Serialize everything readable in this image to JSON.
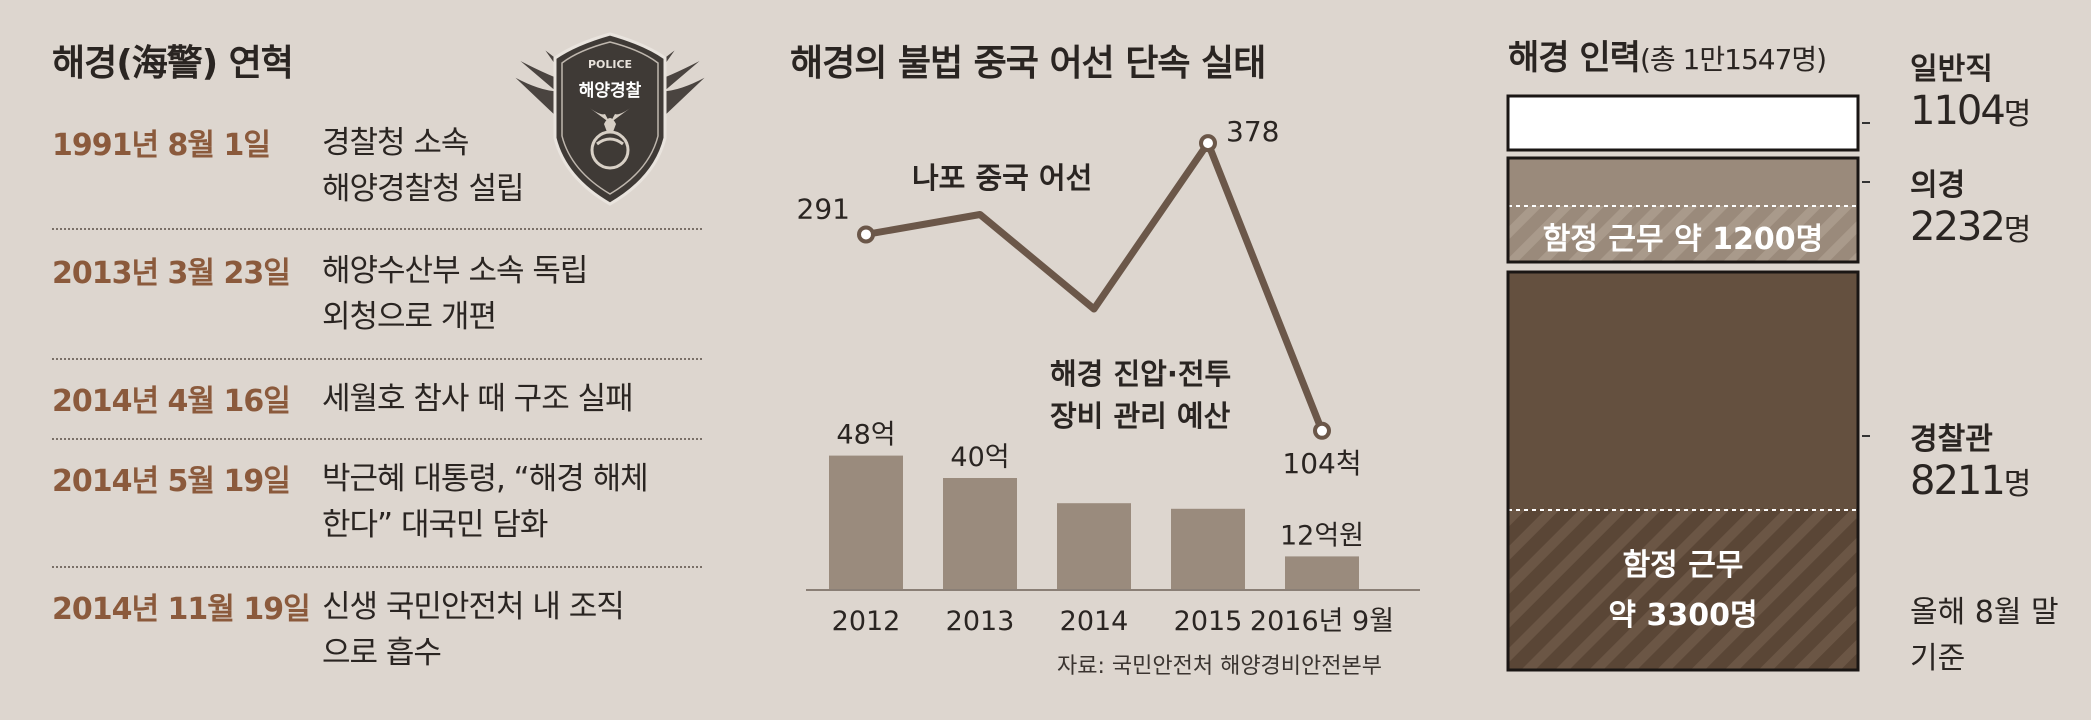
{
  "history": {
    "title": "해경(海警) 연혁",
    "items": [
      {
        "date": "1991년 8월 1일",
        "lines": [
          "경찰청 소속",
          "해양경찰청 설립"
        ]
      },
      {
        "date": "2013년 3월 23일",
        "lines": [
          "해양수산부 소속 독립",
          "외청으로 개편"
        ]
      },
      {
        "date": "2014년 4월 16일",
        "lines": [
          "세월호 참사 때 구조 실패"
        ]
      },
      {
        "date": "2014년 5월 19일",
        "lines": [
          "박근혜 대통령, “해경 해체",
          "한다” 대국민 담화"
        ]
      },
      {
        "date": "2014년 11월 19일",
        "lines": [
          "신생 국민안전처 내 조직",
          "으로 흡수"
        ]
      }
    ],
    "emblem": {
      "top_text": "POLICE",
      "main_text": "해양경찰"
    }
  },
  "chart_data": {
    "title": "해경의 불법 중국 어선 단속 실태",
    "categories": [
      "2012",
      "2013",
      "2014",
      "2015",
      "2016년 9월"
    ],
    "series": [
      {
        "name": "나포 중국 어선",
        "type": "line",
        "values": [
          291,
          310,
          220,
          378,
          104
        ],
        "labels": [
          "291",
          "",
          "",
          "378",
          "104척"
        ]
      },
      {
        "name": "해경 진압·전투 장비 관리 예산",
        "type": "bar",
        "values": [
          48,
          40,
          31,
          29,
          12
        ],
        "labels": [
          "48억",
          "40억",
          "",
          "",
          "12억원"
        ]
      }
    ],
    "source": "자료: 국민안전처 해양경비안전본부"
  },
  "personnel": {
    "title": "해경 인력",
    "subtitle": "(총 1만1547명)",
    "categories": [
      {
        "name": "일반직",
        "value": "1104",
        "unit": "명"
      },
      {
        "name": "의경",
        "value": "2232",
        "unit": "명"
      },
      {
        "name": "경찰관",
        "value": "8211",
        "unit": "명"
      }
    ],
    "box_labels": {
      "conscript_ship": "함정 근무 약 1200명",
      "officer_ship_line1": "함정 근무",
      "officer_ship_line2": "약 3300명"
    },
    "note_lines": [
      "올해 8월 말",
      "기준"
    ]
  },
  "colors": {
    "background": "#ddd6cf",
    "accent_date": "#8b5a3c",
    "line": "#6b5749",
    "bar": "#9a8b7d",
    "officer_box": "#64503f",
    "conscript_box": "#9a8a7b"
  }
}
